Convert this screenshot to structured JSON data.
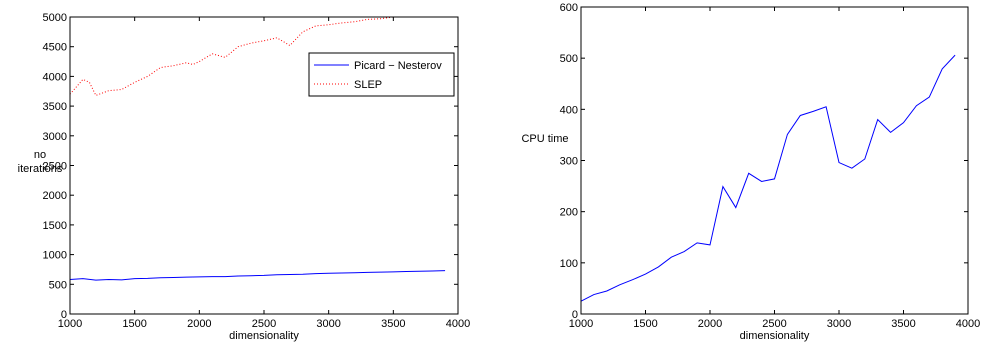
{
  "chart_data": [
    {
      "type": "line",
      "title": "",
      "xlabel": "dimensionality",
      "ylabel_lines": [
        "no",
        "iterations"
      ],
      "xlim": [
        1000,
        4000
      ],
      "ylim": [
        0,
        5000
      ],
      "xticks": [
        1000,
        1500,
        2000,
        2500,
        3000,
        3500,
        4000
      ],
      "yticks": [
        0,
        500,
        1000,
        1500,
        2000,
        2500,
        3000,
        3500,
        4000,
        4500,
        5000
      ],
      "grid": false,
      "legend_position": "top-right",
      "series": [
        {
          "name": "Picard − Nesterov",
          "color": "#0000ff",
          "style": "solid",
          "x": [
            1000,
            1100,
            1200,
            1300,
            1400,
            1500,
            1600,
            1700,
            1800,
            1900,
            2000,
            2100,
            2200,
            2300,
            2400,
            2500,
            2600,
            2700,
            2800,
            2900,
            3000,
            3100,
            3200,
            3300,
            3400,
            3500,
            3600,
            3700,
            3800,
            3900
          ],
          "y": [
            580,
            595,
            570,
            580,
            575,
            595,
            600,
            610,
            615,
            620,
            625,
            630,
            630,
            640,
            645,
            650,
            660,
            665,
            670,
            680,
            685,
            690,
            695,
            700,
            705,
            710,
            715,
            720,
            725,
            730
          ]
        },
        {
          "name": "SLEP",
          "color": "#ff0000",
          "style": "dotted",
          "x": [
            1000,
            1100,
            1150,
            1200,
            1300,
            1400,
            1500,
            1600,
            1700,
            1800,
            1900,
            1950,
            2000,
            2100,
            2200,
            2300,
            2400,
            2500,
            2600,
            2700,
            2800,
            2900,
            3000,
            3100,
            3200,
            3300,
            3400,
            3500,
            3600,
            3700,
            3800,
            3900
          ],
          "y": [
            3700,
            3950,
            3900,
            3680,
            3760,
            3780,
            3900,
            4000,
            4150,
            4180,
            4230,
            4200,
            4250,
            4380,
            4320,
            4500,
            4560,
            4600,
            4650,
            4520,
            4750,
            4850,
            4870,
            4900,
            4920,
            4960,
            4970,
            5000,
            5000,
            5000,
            5000,
            5000
          ]
        }
      ]
    },
    {
      "type": "line",
      "title": "",
      "xlabel": "dimensionality",
      "ylabel_lines": [
        "CPU time"
      ],
      "xlim": [
        1000,
        4000
      ],
      "ylim": [
        0,
        600
      ],
      "xticks": [
        1000,
        1500,
        2000,
        2500,
        3000,
        3500,
        4000
      ],
      "yticks": [
        0,
        100,
        200,
        300,
        400,
        500,
        600
      ],
      "grid": false,
      "legend_position": "",
      "series": [
        {
          "name": "",
          "color": "#0000ff",
          "style": "solid",
          "x": [
            1000,
            1100,
            1200,
            1300,
            1400,
            1500,
            1600,
            1700,
            1800,
            1900,
            2000,
            2100,
            2200,
            2300,
            2400,
            2500,
            2600,
            2700,
            2800,
            2900,
            3000,
            3100,
            3200,
            3300,
            3400,
            3500,
            3600,
            3700,
            3800,
            3900
          ],
          "y": [
            25,
            38,
            45,
            57,
            67,
            78,
            92,
            111,
            122,
            139,
            135,
            249,
            208,
            275,
            259,
            264,
            351,
            388,
            396,
            405,
            296,
            285,
            303,
            380,
            355,
            374,
            407,
            424,
            479,
            506
          ]
        }
      ]
    }
  ]
}
